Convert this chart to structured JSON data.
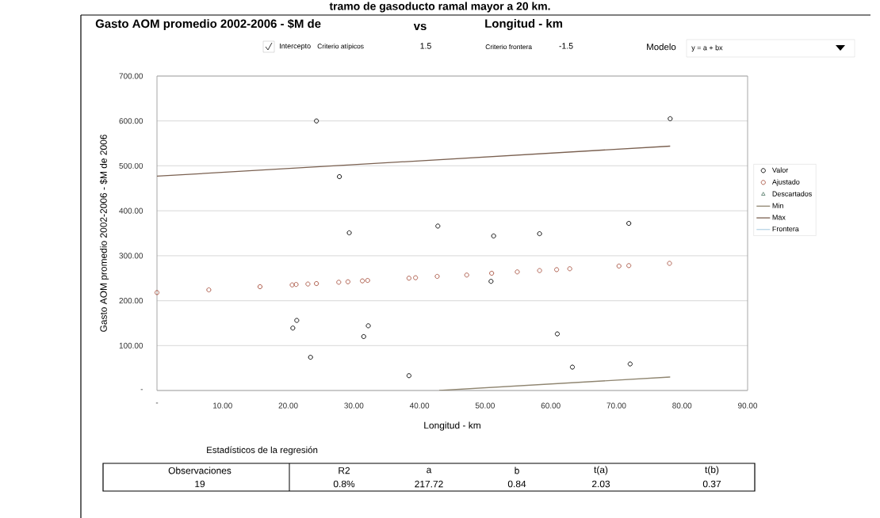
{
  "chart_data": {
    "type": "scatter",
    "title": "tramo de gasoducto ramal mayor a 20 km.",
    "xlabel": "Longitud - km",
    "ylabel": "Gasto AOM promedio 2002-2006 - $M de 2006",
    "xlim": [
      0,
      90
    ],
    "ylim": [
      0,
      700
    ],
    "xticks": [
      {
        "value": 0,
        "label": "-"
      },
      {
        "value": 10,
        "label": "10.00"
      },
      {
        "value": 20,
        "label": "20.00"
      },
      {
        "value": 30,
        "label": "30.00"
      },
      {
        "value": 40,
        "label": "40.00"
      },
      {
        "value": 50,
        "label": "50.00"
      },
      {
        "value": 60,
        "label": "60.00"
      },
      {
        "value": 70,
        "label": "70.00"
      },
      {
        "value": 80,
        "label": "80.00"
      },
      {
        "value": 90,
        "label": "90.00"
      }
    ],
    "yticks": [
      {
        "value": 0,
        "label": "-"
      },
      {
        "value": 100,
        "label": "100.00"
      },
      {
        "value": 200,
        "label": "200.00"
      },
      {
        "value": 300,
        "label": "300.00"
      },
      {
        "value": 400,
        "label": "400.00"
      },
      {
        "value": 500,
        "label": "500.00"
      },
      {
        "value": 600,
        "label": "600.00"
      },
      {
        "value": 700,
        "label": "700.00"
      }
    ],
    "grid": "y",
    "legend": "right",
    "series": [
      {
        "name": "Valor",
        "marker": "circle",
        "color": "#111111",
        "x": [
          24.3,
          27.8,
          29.3,
          42.8,
          21.3,
          20.7,
          32.2,
          31.5,
          23.4,
          38.4,
          78.2,
          51.3,
          58.3,
          71.9,
          50.9,
          61.0,
          63.3,
          72.1
        ],
        "values": [
          600,
          476,
          351,
          366,
          156,
          139,
          144,
          120,
          74,
          33,
          605,
          344,
          349,
          372,
          243,
          126,
          52,
          59
        ]
      },
      {
        "name": "Ajustado",
        "marker": "circle",
        "color": "#b0604f",
        "x": [
          0,
          7.9,
          15.7,
          20.6,
          21.2,
          23.0,
          24.3,
          27.7,
          29.1,
          31.3,
          32.1,
          38.4,
          39.4,
          42.7,
          47.2,
          51.0,
          54.9,
          58.3,
          60.9,
          62.9,
          70.4,
          71.9,
          78.1
        ],
        "values": [
          218,
          224,
          231,
          235,
          236,
          237,
          238,
          241,
          242,
          244,
          245,
          250,
          251,
          254,
          257,
          261,
          264,
          267,
          269,
          271,
          277,
          278,
          283
        ]
      },
      {
        "name": "Descartados",
        "marker": "triangle",
        "color": "#6f8f80"
      },
      {
        "name": "Min",
        "type": "line",
        "color": "#8f8570",
        "x": [
          43.0,
          78.2
        ],
        "values": [
          0,
          30
        ]
      },
      {
        "name": "Max",
        "type": "line",
        "color": "#7a6050",
        "x": [
          0,
          78.2
        ],
        "values": [
          477,
          544
        ]
      },
      {
        "name": "Frontera",
        "type": "line",
        "color": "#b8d4e6"
      }
    ],
    "annotations": [
      "Gasto AOM promedio 2002-2006 - $M de",
      "vs",
      "Longitud - km",
      "Intercepto",
      "Criterio atípicos",
      "1.5",
      "Criterio frontera",
      "-1.5",
      "Modelo",
      "y = a + bx",
      "Estadísticos de la regresión",
      "Observaciones",
      "R2",
      "a",
      "b",
      "t(a)",
      "t(b)",
      "19",
      "0.8%",
      "217.72",
      "0.84",
      "2.03",
      "0.37"
    ]
  }
}
